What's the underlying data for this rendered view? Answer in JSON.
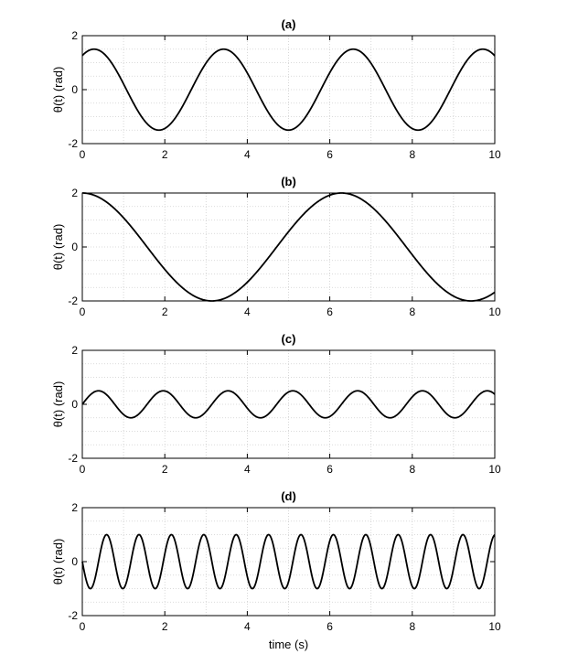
{
  "figure": {
    "xlabel": "time (s)"
  },
  "chart_data": [
    {
      "type": "line",
      "title": "(a)",
      "ylabel": "θ(t) (rad)",
      "xlabel": "",
      "xlim": [
        0,
        10
      ],
      "ylim": [
        -2,
        2
      ],
      "xticks": [
        0,
        2,
        4,
        6,
        8,
        10
      ],
      "yticks": [
        -2,
        0,
        2
      ],
      "grid": true,
      "series": [
        {
          "function": "amplitude*sin(omega*t+phase)",
          "amplitude": 1.5,
          "omega": 2.0,
          "phase": 1.0,
          "color": "#000000"
        }
      ]
    },
    {
      "type": "line",
      "title": "(b)",
      "ylabel": "θ(t) (rad)",
      "xlabel": "",
      "xlim": [
        0,
        10
      ],
      "ylim": [
        -2,
        2
      ],
      "xticks": [
        0,
        2,
        4,
        6,
        8,
        10
      ],
      "yticks": [
        -2,
        0,
        2
      ],
      "grid": true,
      "series": [
        {
          "function": "amplitude*sin(omega*t+phase)",
          "amplitude": 2.0,
          "omega": 1.0,
          "phase": 1.5708,
          "color": "#000000"
        }
      ]
    },
    {
      "type": "line",
      "title": "(c)",
      "ylabel": "θ(t) (rad)",
      "xlabel": "",
      "xlim": [
        0,
        10
      ],
      "ylim": [
        -2,
        2
      ],
      "xticks": [
        0,
        2,
        4,
        6,
        8,
        10
      ],
      "yticks": [
        -2,
        0,
        2
      ],
      "grid": true,
      "series": [
        {
          "function": "amplitude*sin(omega*t+phase)",
          "amplitude": 0.5,
          "omega": 4.0,
          "phase": 0.0,
          "color": "#000000"
        }
      ]
    },
    {
      "type": "line",
      "title": "(d)",
      "ylabel": "θ(t) (rad)",
      "xlabel": "time (s)",
      "xlim": [
        0,
        10
      ],
      "ylim": [
        -2,
        2
      ],
      "xticks": [
        0,
        2,
        4,
        6,
        8,
        10
      ],
      "yticks": [
        -2,
        0,
        2
      ],
      "grid": true,
      "series": [
        {
          "function": "-amplitude*sin(omega*t)",
          "amplitude": 1.0,
          "omega": 8.0,
          "phase": 0.0,
          "color": "#000000"
        }
      ]
    }
  ]
}
